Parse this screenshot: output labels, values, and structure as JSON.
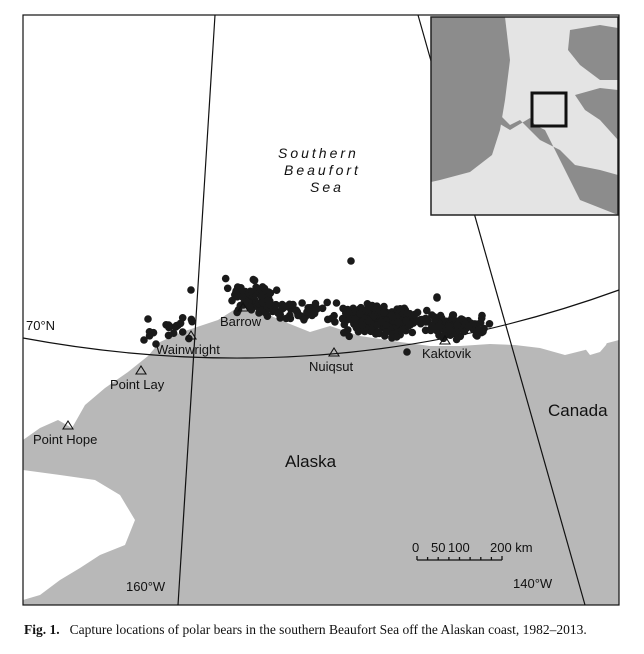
{
  "map": {
    "sea_label": [
      "Southern",
      "Beaufort",
      "Sea"
    ],
    "region_labels": {
      "alaska": "Alaska",
      "canada": "Canada"
    },
    "latitude_label": "70°N",
    "meridian_labels": {
      "west": "160°W",
      "east": "140°W"
    },
    "places": [
      {
        "name": "Barrow"
      },
      {
        "name": "Wainwright"
      },
      {
        "name": "Point Lay"
      },
      {
        "name": "Point Hope"
      },
      {
        "name": "Nuiqsut"
      },
      {
        "name": "Kaktovik"
      }
    ],
    "scale_bar": {
      "ticks": [
        "0",
        "50",
        "100",
        "200 km"
      ]
    },
    "colors": {
      "land": "#b8b8b8",
      "inset_land": "#8c8c8c",
      "inset_sea": "#e4e4e4",
      "points": "#1a1a1a"
    },
    "marker_icon": "triangle-outline-icon",
    "point_icon": "filled-circle-icon"
  },
  "caption": {
    "label": "Fig. 1.",
    "text": "Capture locations of polar bears in the southern Beaufort Sea off the Alaskan coast, 1982–2013."
  }
}
